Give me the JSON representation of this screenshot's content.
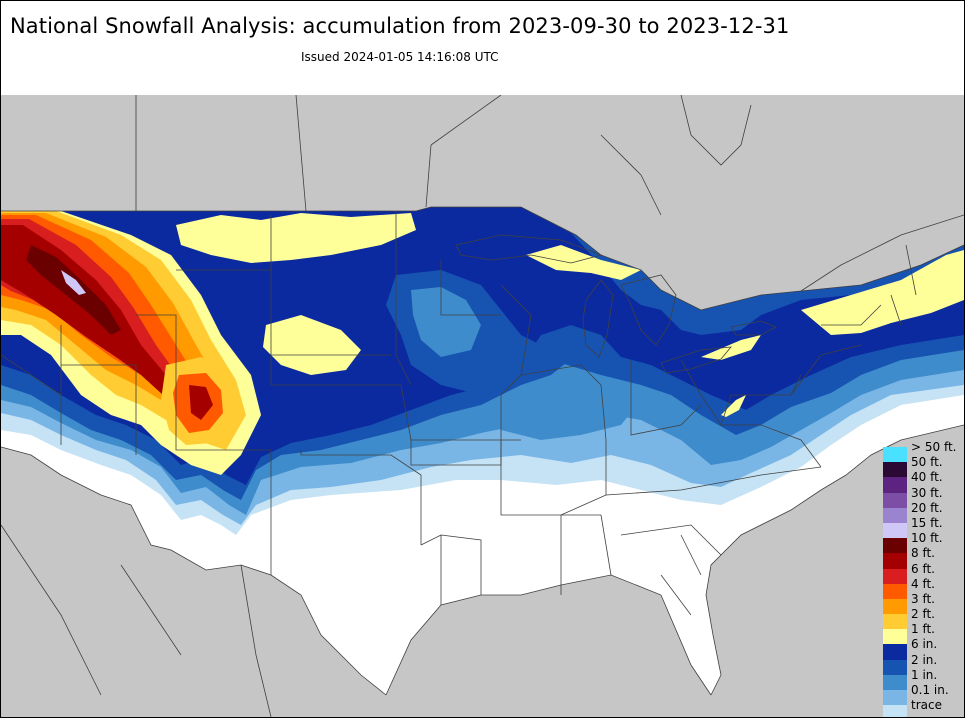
{
  "title": "National Snowfall Analysis: accumulation from 2023-09-30 to 2023-12-31",
  "issued": "Issued 2024-01-05 14:16:08 UTC",
  "legend": [
    {
      "label": "> 50 ft.",
      "color": "#4ae0ff"
    },
    {
      "label": "50 ft.",
      "color": "#2a0a35"
    },
    {
      "label": "40 ft.",
      "color": "#5c2380"
    },
    {
      "label": "30 ft.",
      "color": "#7d4ea6"
    },
    {
      "label": "20 ft.",
      "color": "#9a83cf"
    },
    {
      "label": "15 ft.",
      "color": "#cfc7f5"
    },
    {
      "label": "10 ft.",
      "color": "#6b0000"
    },
    {
      "label": "8 ft.",
      "color": "#a50000"
    },
    {
      "label": "6 ft.",
      "color": "#d81e1e"
    },
    {
      "label": "4 ft.",
      "color": "#ff5a00"
    },
    {
      "label": "3 ft.",
      "color": "#ff9a00"
    },
    {
      "label": "2 ft.",
      "color": "#ffcc33"
    },
    {
      "label": "1 ft.",
      "color": "#ffff99"
    },
    {
      "label": "6 in.",
      "color": "#0b2aa0"
    },
    {
      "label": "2 in.",
      "color": "#1753b0"
    },
    {
      "label": "1 in.",
      "color": "#3f8ccc"
    },
    {
      "label": "0.1 in.",
      "color": "#79b6e6"
    },
    {
      "label": "trace",
      "color": "#c5e3f5"
    },
    {
      "label": "",
      "color": "#ffffff"
    }
  ]
}
